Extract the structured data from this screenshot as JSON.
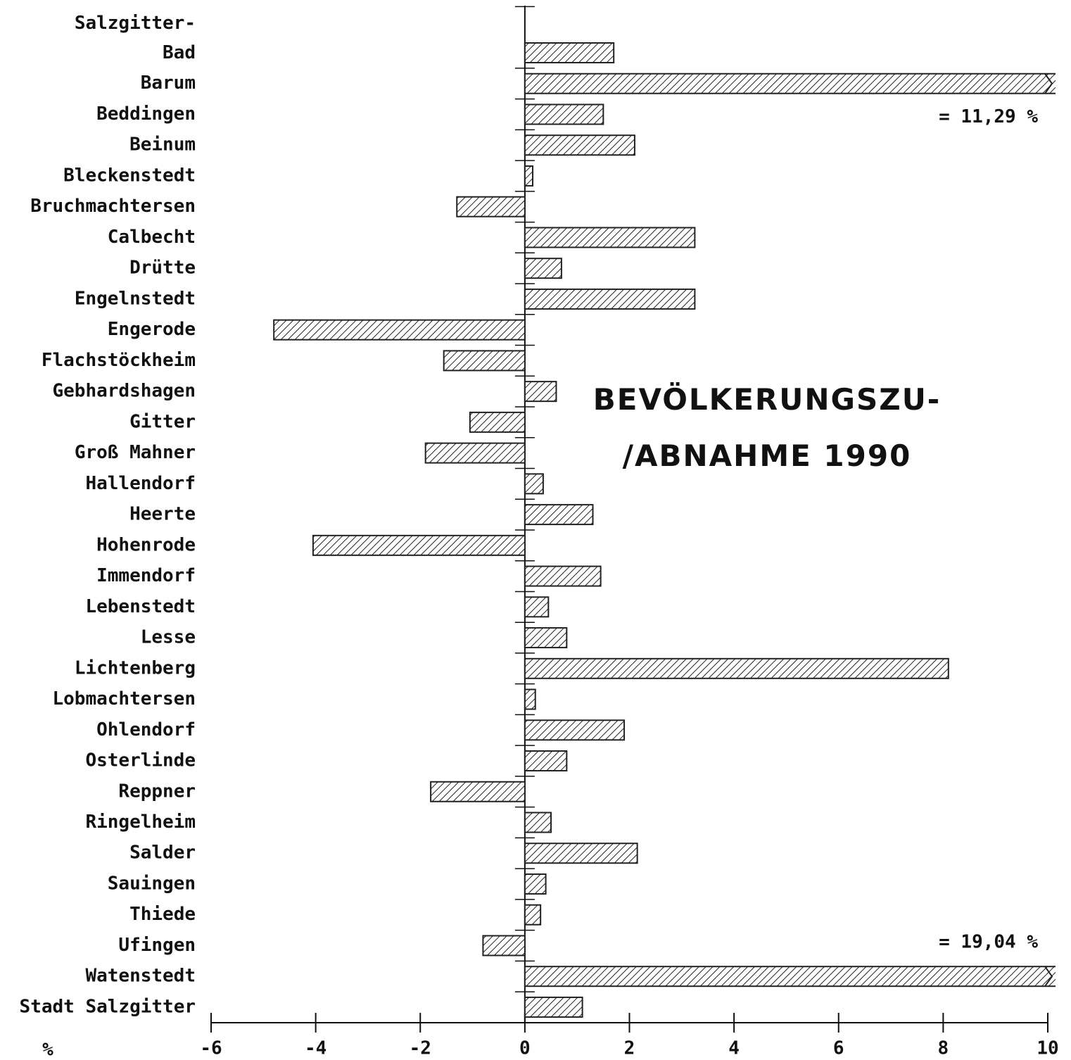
{
  "chart_data": {
    "type": "hbar",
    "title": "BEVÖLKERUNGSZU-\n/ABNAHME 1990",
    "xlabel": "%",
    "categories": [
      "Salzgitter-\nBad",
      "Barum",
      "Beddingen",
      "Beinum",
      "Bleckenstedt",
      "Bruchmachtersen",
      "Calbecht",
      "Drütte",
      "Engelnstedt",
      "Engerode",
      "Flachstöckheim",
      "Gebhardshagen",
      "Gitter",
      "Groß Mahner",
      "Hallendorf",
      "Heerte",
      "Hohenrode",
      "Immendorf",
      "Lebenstedt",
      "Lesse",
      "Lichtenberg",
      "Lobmachtersen",
      "Ohlendorf",
      "Osterlinde",
      "Reppner",
      "Ringelheim",
      "Salder",
      "Sauingen",
      "Thiede",
      "Ufingen",
      "Watenstedt",
      "Stadt Salzgitter"
    ],
    "values": [
      1.7,
      11.29,
      1.5,
      2.1,
      0.15,
      -1.3,
      3.25,
      0.7,
      3.25,
      -4.8,
      -1.55,
      0.6,
      -1.05,
      -1.9,
      0.35,
      1.3,
      -4.05,
      1.45,
      0.45,
      0.8,
      8.1,
      0.2,
      1.9,
      0.8,
      -1.8,
      0.5,
      2.15,
      0.4,
      0.3,
      -0.8,
      19.04,
      1.1
    ],
    "value_labels": [
      null,
      "= 11,29 %",
      null,
      null,
      null,
      null,
      null,
      null,
      null,
      null,
      null,
      null,
      null,
      null,
      null,
      null,
      null,
      null,
      null,
      null,
      null,
      null,
      null,
      null,
      null,
      null,
      null,
      null,
      null,
      null,
      "= 19,04 %",
      null
    ],
    "color": "#222222",
    "xlim": [
      -6,
      10
    ],
    "xticks": [
      -6,
      -4,
      -2,
      0,
      2,
      4,
      6,
      8,
      10
    ]
  }
}
